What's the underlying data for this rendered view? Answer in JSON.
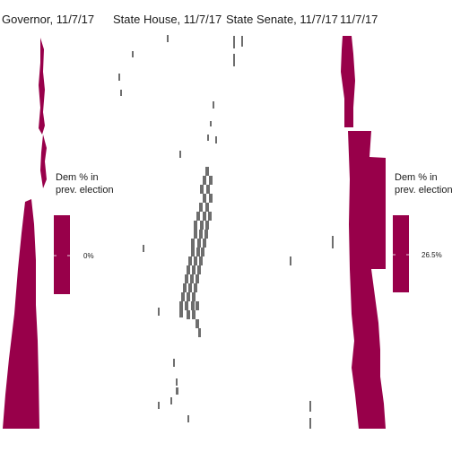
{
  "chart_data": [
    {
      "type": "heatmap",
      "title": "Governor, 11/7/17",
      "color": "#98004a",
      "legend": {
        "title_lines": [
          "Dem % in",
          "prev. election"
        ],
        "value_label": "0%"
      }
    },
    {
      "type": "heatmap",
      "title": "State House, 11/7/17",
      "color": "#6e6e6e"
    },
    {
      "type": "heatmap",
      "title": "State Senate, 11/7/17",
      "color": "#98004a"
    },
    {
      "type": "heatmap",
      "title": "11/7/17",
      "color": "#98004a",
      "legend": {
        "title_lines": [
          "Dem % in",
          "prev. election"
        ],
        "value_label": "26.5%"
      }
    }
  ]
}
